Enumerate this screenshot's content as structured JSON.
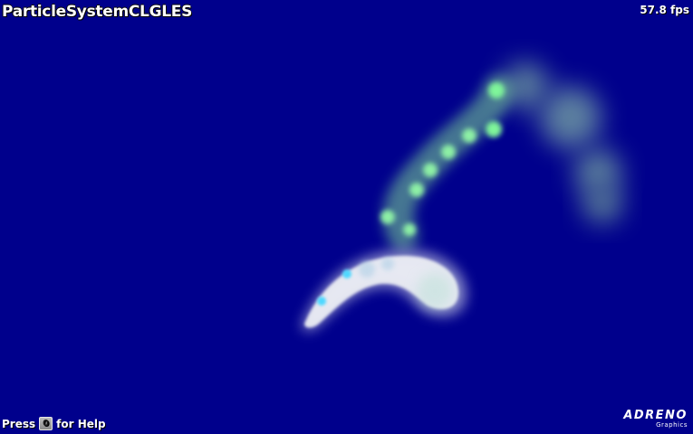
{
  "app": {
    "title": "ParticleSystemCLGLES"
  },
  "stats": {
    "fps": "57.8 fps"
  },
  "help": {
    "press": "Press",
    "key": "0",
    "suffix": "for Help"
  },
  "logo": {
    "main": "ADRENO",
    "sub": "Graphics"
  },
  "colors": {
    "background": "#00008c",
    "green_particle": "#8cf0a0",
    "white_particle": "#e6eaf0",
    "cyan_core": "#40d8ff"
  }
}
